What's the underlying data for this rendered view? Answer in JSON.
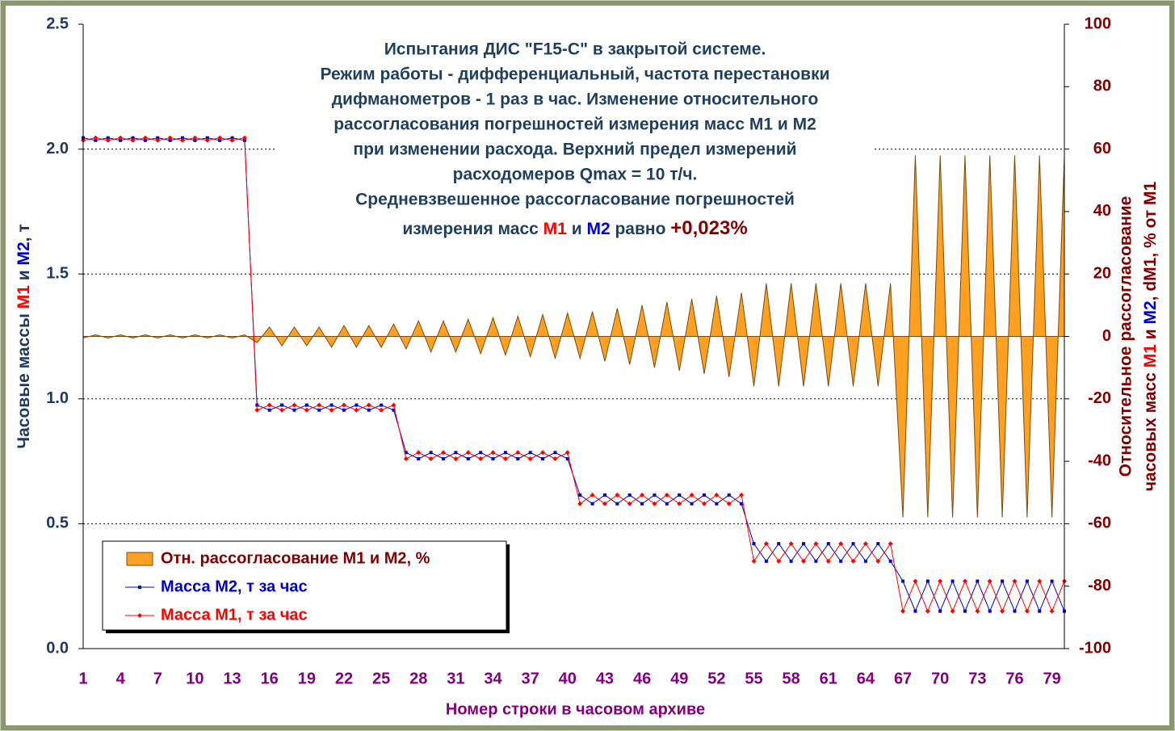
{
  "chart_data": {
    "type": "area-line",
    "title": [
      "Испытания ДИС \"F15-C\" в закрытой системе.",
      "Режим работы - дифференциальный, частота перестановки",
      "дифманометров - 1 раз в час. Изменение относительного",
      "рассогласования погрешностей измерения масс М1 и М2",
      "при изменении расхода. Верхний предел измерений",
      "расходомеров Qmax = 10 т/ч.",
      "Средневзвешенное рассогласование погрешностей"
    ],
    "title_last_line": [
      {
        "text": "измерения масс ",
        "color": "#1f3f5f"
      },
      {
        "text": "М1",
        "color": "#ff0000"
      },
      {
        "text": " и ",
        "color": "#1f3f5f"
      },
      {
        "text": "М2",
        "color": "#0000cc"
      },
      {
        "text": " равно ",
        "color": "#1f3f5f"
      },
      {
        "text": "+0,023%",
        "color": "#800000"
      }
    ],
    "ylabel": [
      {
        "text": "Часовые массы ",
        "color": "#1f3864"
      },
      {
        "text": "М1",
        "color": "#ff0000"
      },
      {
        "text": " и ",
        "color": "#1f3864"
      },
      {
        "text": "М2",
        "color": "#0000cc"
      },
      {
        "text": ", т",
        "color": "#1f3864"
      }
    ],
    "y2label": [
      "Относительное рассогласование",
      [
        {
          "text": "часовых масс ",
          "color": "#800000"
        },
        {
          "text": "М1",
          "color": "#ff0000"
        },
        {
          "text": " и ",
          "color": "#800000"
        },
        {
          "text": "М2",
          "color": "#0000cc"
        },
        {
          "text": ", dM1, % от М1",
          "color": "#800000"
        }
      ]
    ],
    "xlabel": "Номер строки в часовом архиве",
    "categories": [
      1,
      null,
      null,
      4,
      null,
      null,
      7,
      null,
      null,
      10,
      null,
      null,
      13,
      null,
      null,
      16,
      null,
      null,
      19,
      null,
      null,
      22,
      null,
      null,
      25,
      null,
      null,
      28,
      null,
      null,
      31,
      null,
      null,
      34,
      null,
      null,
      37,
      null,
      null,
      40,
      null,
      null,
      43,
      null,
      null,
      46,
      null,
      null,
      49,
      null,
      null,
      52,
      null,
      null,
      55,
      null,
      null,
      58,
      null,
      null,
      61,
      null,
      null,
      64,
      null,
      null,
      67,
      null,
      null,
      70,
      null,
      null,
      73,
      null,
      null,
      76,
      null,
      null,
      79,
      null
    ],
    "ylim": [
      0,
      2.5
    ],
    "yticks": [
      {
        "value": 0,
        "label": "0.0"
      },
      0.5,
      {
        "value": 1,
        "label": "1.0"
      },
      1.5,
      {
        "value": 2,
        "label": "2.0"
      },
      2.5
    ],
    "y2lim": [
      -100,
      100
    ],
    "y2ticks": [
      -100,
      -80,
      -60,
      -40,
      -20,
      0,
      20,
      40,
      60,
      80,
      100
    ],
    "grid": true,
    "legend": "lower left",
    "series": [
      {
        "name": "Отн. рассогласование М1 и М2, %",
        "type": "area",
        "axis": "y2",
        "color": "#ffa020",
        "legend_text_color": "#800000",
        "values": [
          -0.5,
          0.5,
          -0.5,
          0.5,
          -0.5,
          0.5,
          -0.5,
          0.5,
          -0.5,
          0.5,
          -0.5,
          0.5,
          -0.5,
          0.5,
          -2,
          3,
          -3,
          3,
          -3,
          3,
          -3.5,
          3.5,
          -3.5,
          3.5,
          -3.5,
          4,
          -4,
          5,
          -5,
          5,
          -5,
          5.5,
          -5.5,
          6,
          -6,
          6.5,
          -6.5,
          7,
          -7,
          7.5,
          -7,
          8,
          -8,
          9,
          -9,
          10,
          -10,
          11,
          -11,
          12,
          -12,
          13,
          -13,
          14,
          -16,
          17,
          -16,
          17,
          -16,
          17,
          -16,
          17,
          -16,
          17,
          -16,
          17,
          -58,
          58,
          -58,
          58,
          -58,
          58,
          -58,
          58,
          -58,
          58,
          -58,
          58,
          -58,
          58
        ]
      },
      {
        "name": "Масса М2, т за час",
        "type": "line",
        "marker": "square",
        "color": "#0000cc",
        "legend_text_color": "#0000cc",
        "values": [
          2.045,
          2.035,
          2.045,
          2.035,
          2.045,
          2.035,
          2.045,
          2.035,
          2.045,
          2.035,
          2.045,
          2.035,
          2.045,
          2.035,
          0.975,
          0.955,
          0.975,
          0.955,
          0.975,
          0.955,
          0.975,
          0.955,
          0.975,
          0.955,
          0.975,
          0.955,
          0.785,
          0.76,
          0.785,
          0.76,
          0.785,
          0.76,
          0.785,
          0.76,
          0.785,
          0.76,
          0.785,
          0.76,
          0.785,
          0.76,
          0.615,
          0.58,
          0.615,
          0.58,
          0.615,
          0.58,
          0.615,
          0.58,
          0.615,
          0.58,
          0.615,
          0.58,
          0.615,
          0.58,
          0.42,
          0.35,
          0.42,
          0.35,
          0.42,
          0.35,
          0.42,
          0.35,
          0.42,
          0.35,
          0.42,
          0.35,
          0.27,
          0.15,
          0.27,
          0.15,
          0.27,
          0.15,
          0.27,
          0.15,
          0.27,
          0.15,
          0.27,
          0.15,
          0.27,
          0.15
        ]
      },
      {
        "name": "Масса М1, т за час",
        "type": "line",
        "marker": "diamond",
        "color": "#ff0000",
        "legend_text_color": "#ff0000",
        "values": [
          2.035,
          2.045,
          2.035,
          2.045,
          2.035,
          2.045,
          2.035,
          2.045,
          2.035,
          2.045,
          2.035,
          2.045,
          2.035,
          2.045,
          0.955,
          0.975,
          0.955,
          0.975,
          0.955,
          0.975,
          0.955,
          0.975,
          0.955,
          0.975,
          0.955,
          0.975,
          0.76,
          0.785,
          0.76,
          0.785,
          0.76,
          0.785,
          0.76,
          0.785,
          0.76,
          0.785,
          0.76,
          0.785,
          0.76,
          0.785,
          0.58,
          0.615,
          0.58,
          0.615,
          0.58,
          0.615,
          0.58,
          0.615,
          0.58,
          0.615,
          0.58,
          0.615,
          0.58,
          0.615,
          0.35,
          0.42,
          0.35,
          0.42,
          0.35,
          0.42,
          0.35,
          0.42,
          0.35,
          0.42,
          0.35,
          0.42,
          0.15,
          0.27,
          0.15,
          0.27,
          0.15,
          0.27,
          0.15,
          0.27,
          0.15,
          0.27,
          0.15,
          0.27,
          0.15,
          0.27
        ]
      }
    ]
  }
}
